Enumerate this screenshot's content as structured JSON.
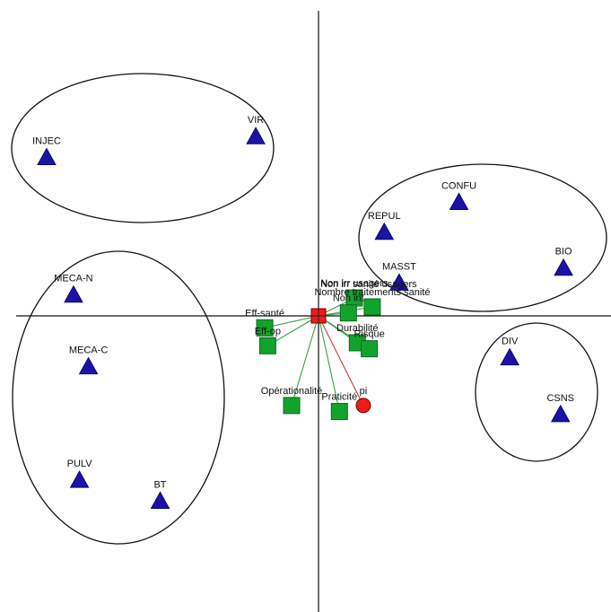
{
  "chart_data": {
    "type": "scatter",
    "title": "",
    "xlabel": "",
    "ylabel": "",
    "grid": false,
    "xlim": [
      -100,
      100
    ],
    "ylim": [
      -100,
      100
    ],
    "colors": {
      "triangle": "#1c13a6",
      "square": "#12a32c",
      "center": "#ee1c1c",
      "pi": "#ee1c1c",
      "line_green": "#3a9f44",
      "line_red": "#d23a3a"
    },
    "triangles": [
      {
        "label": "INJEC",
        "x": -91,
        "y": 53
      },
      {
        "label": "VIR",
        "x": -21,
        "y": 60
      },
      {
        "label": "CONFU",
        "x": 47,
        "y": 38
      },
      {
        "label": "REPUL",
        "x": 22,
        "y": 28
      },
      {
        "label": "BIO",
        "x": 82,
        "y": 16
      },
      {
        "label": "MASST",
        "x": 27,
        "y": 11
      },
      {
        "label": "MECA-N",
        "x": -82,
        "y": 7
      },
      {
        "label": "MECA-C",
        "x": -77,
        "y": -17
      },
      {
        "label": "DIV",
        "x": 64,
        "y": -14
      },
      {
        "label": "CSNS",
        "x": 81,
        "y": -33
      },
      {
        "label": "PULV",
        "x": -80,
        "y": -55
      },
      {
        "label": "BT",
        "x": -53,
        "y": -62
      }
    ],
    "squares": [
      {
        "label": "Eff-santé",
        "x": -18,
        "y": -4
      },
      {
        "label": "Eff-op",
        "x": -17,
        "y": -10
      },
      {
        "label": "Opérationalité",
        "x": -9,
        "y": -30
      },
      {
        "label": "Praticité",
        "x": 7,
        "y": -32
      },
      {
        "label": "Non irr usagers",
        "x": 12,
        "y": 6
      },
      {
        "label": "Non int",
        "x": 10,
        "y": 1
      },
      {
        "label": "Durabilité",
        "x": 13,
        "y": -9
      },
      {
        "label": "Risque",
        "x": 17,
        "y": -11
      },
      {
        "label": "Nombre traitements sanité",
        "x": 18,
        "y": 3
      }
    ],
    "center_point": {
      "label": "Non irr sanité usagers",
      "x": 0,
      "y": 0
    },
    "extra_point": {
      "label": "pi",
      "x": 15,
      "y": -30
    }
  }
}
